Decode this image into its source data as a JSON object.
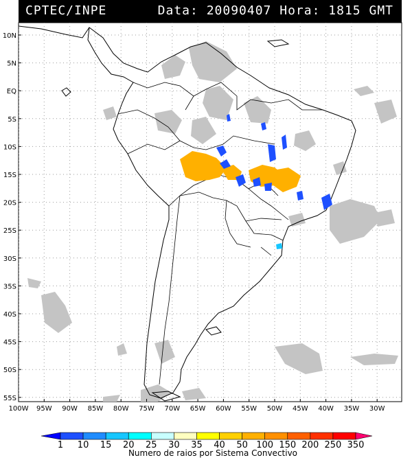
{
  "header": {
    "org": "CPTEC/INPE",
    "data_label": "Data:",
    "date": "20090407",
    "hora_label": "Hora:",
    "time": "1815",
    "tz": "GMT"
  },
  "axes": {
    "lat_labels": [
      "10N",
      "5N",
      "EQ",
      "5S",
      "10S",
      "15S",
      "20S",
      "25S",
      "30S",
      "35S",
      "40S",
      "45S",
      "50S",
      "55S"
    ],
    "lon_labels": [
      "100W",
      "95W",
      "90W",
      "85W",
      "80W",
      "75W",
      "70W",
      "65W",
      "60W",
      "55W",
      "50W",
      "45W",
      "40W",
      "35W",
      "30W"
    ]
  },
  "legend": {
    "title": "Numero de raios por Sistema Convectivo",
    "values": [
      "1",
      "10",
      "15",
      "20",
      "25",
      "30",
      "35",
      "40",
      "50",
      "100",
      "150",
      "200",
      "250",
      "350"
    ],
    "colors": [
      "#0000ff",
      "#1e50ff",
      "#1f8cff",
      "#16c6ff",
      "#00ffff",
      "#c8ffff",
      "#ffffc0",
      "#ffff00",
      "#ffd000",
      "#ffb000",
      "#ff9000",
      "#ff6000",
      "#ff3000",
      "#ff0000",
      "#ff0070"
    ]
  }
}
